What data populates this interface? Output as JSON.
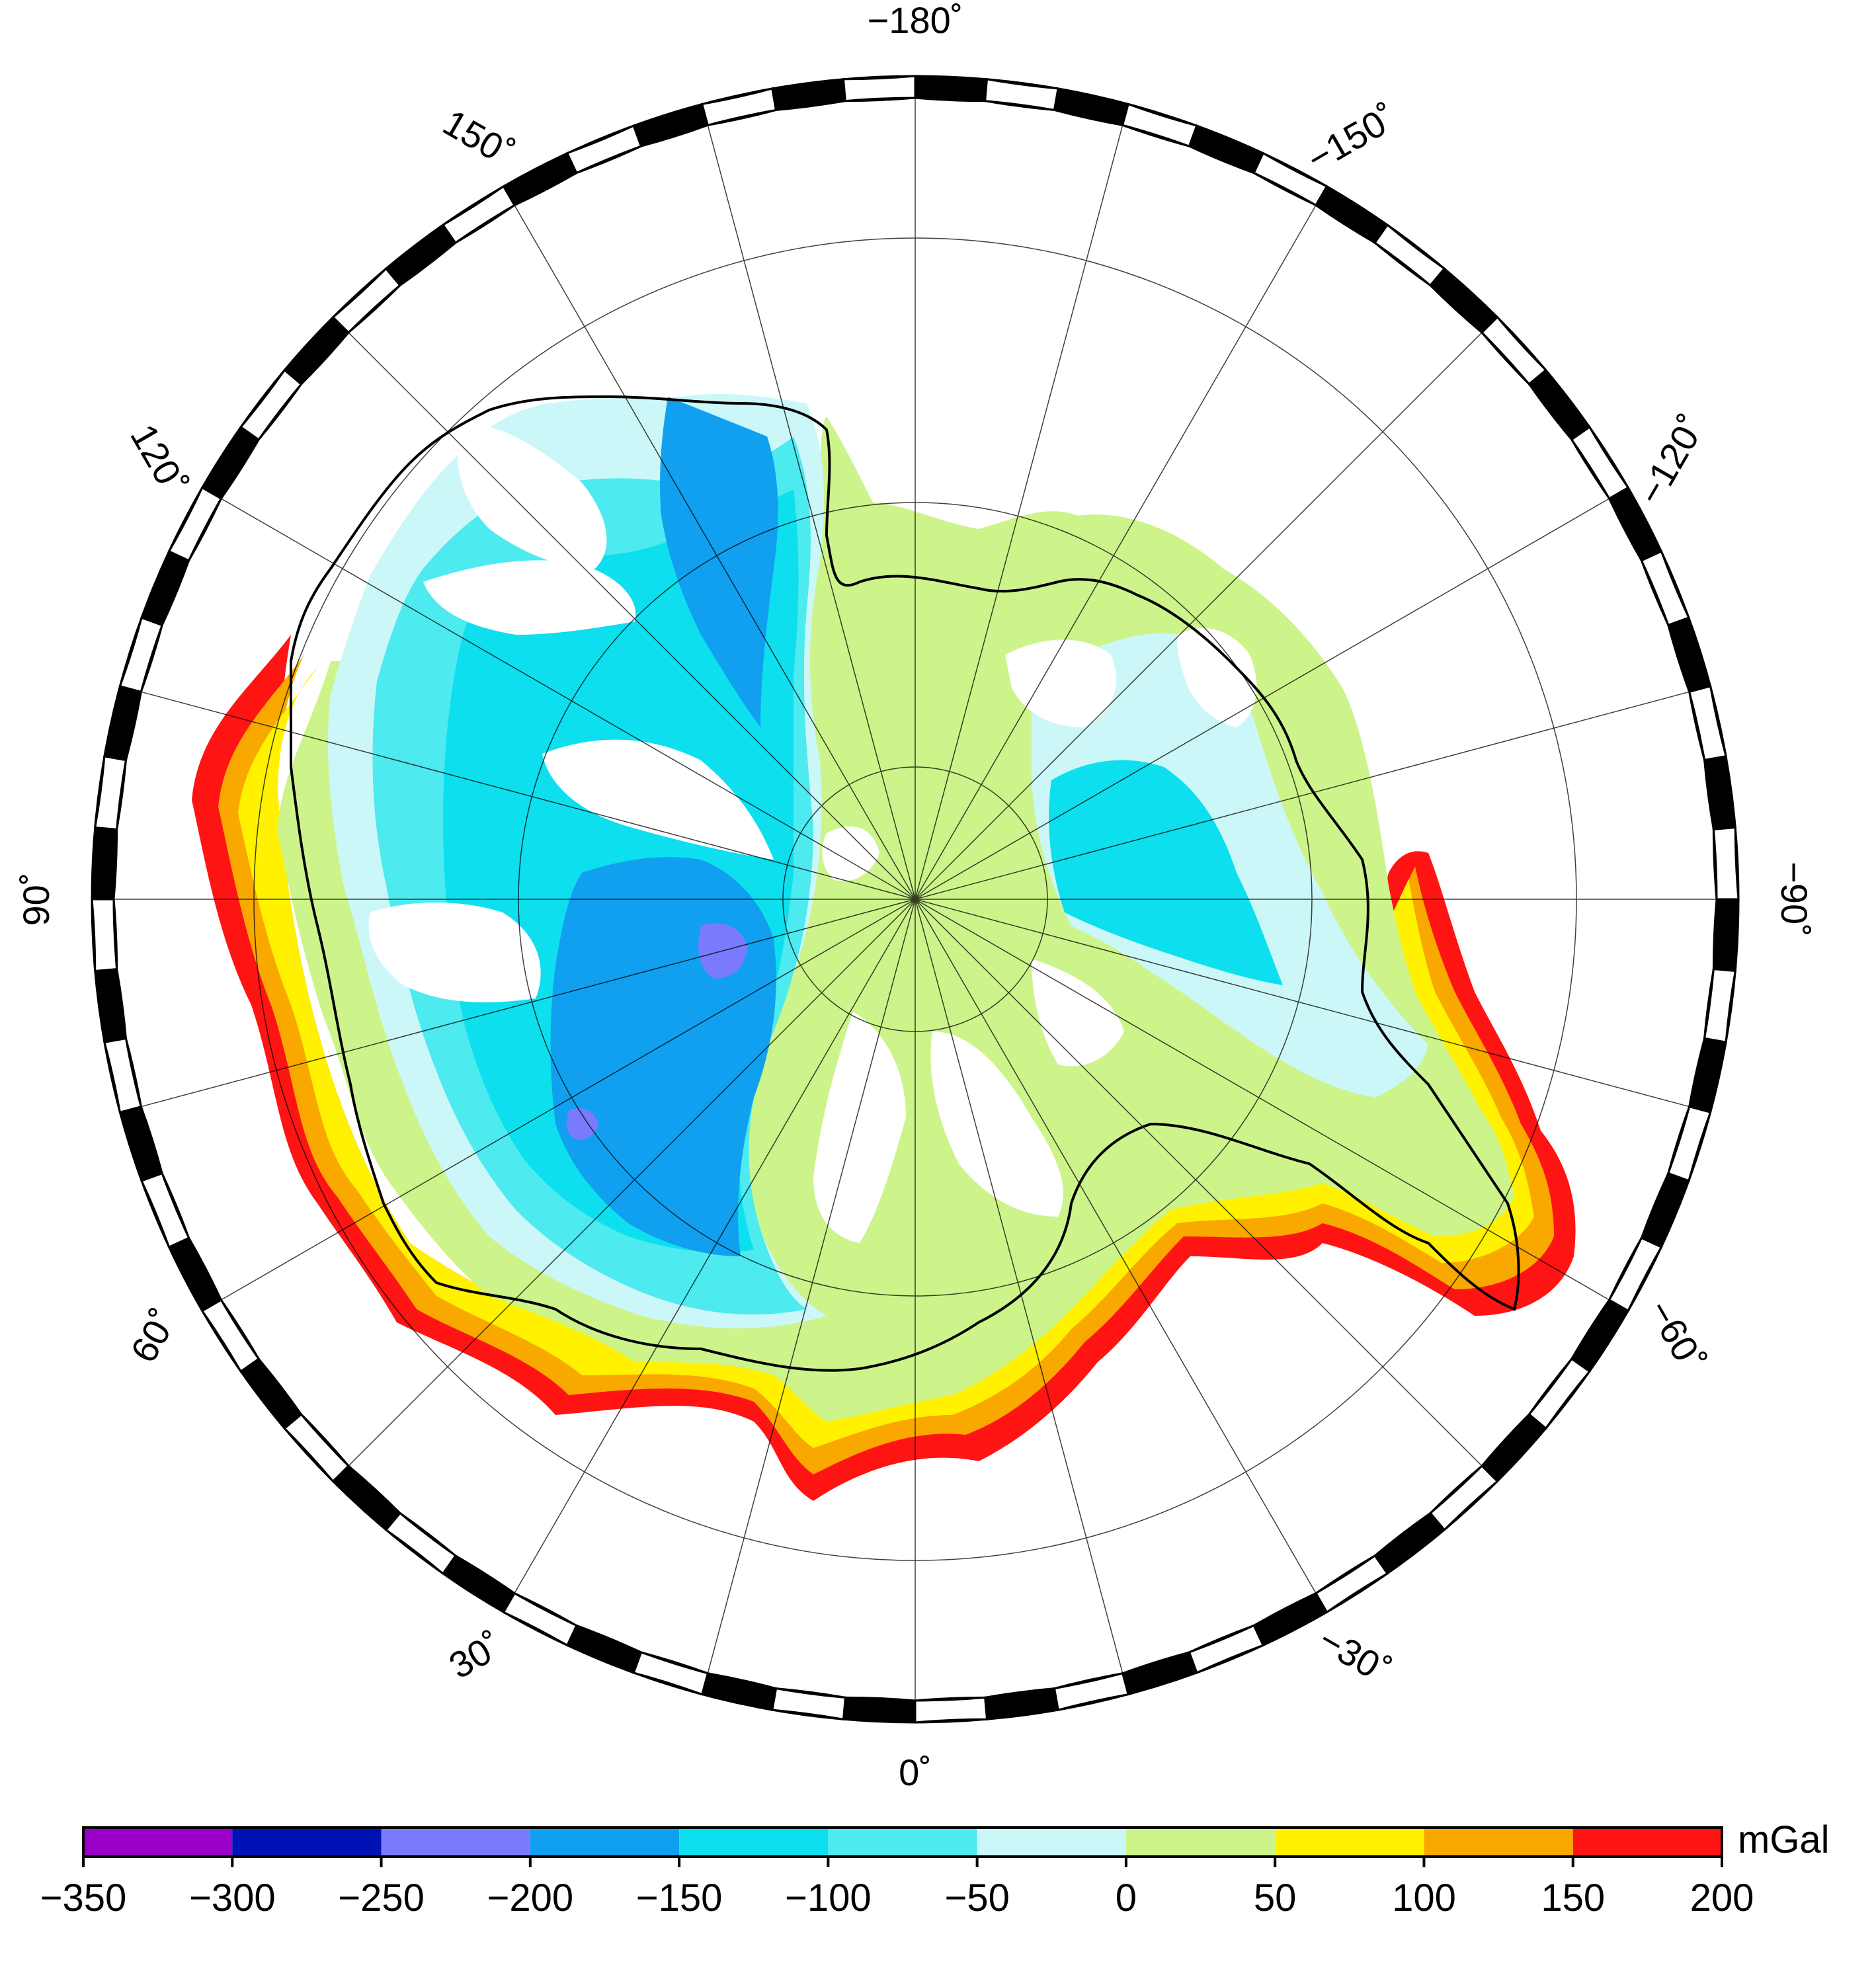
{
  "map": {
    "projection": "polar stereographic (south pole)",
    "graticule_longitudes_deg": [
      -180,
      -165,
      -150,
      -135,
      -120,
      -105,
      -90,
      -75,
      -60,
      -45,
      -30,
      -15,
      0,
      15,
      30,
      45,
      60,
      75,
      90,
      105,
      120,
      135,
      150,
      165
    ],
    "graticule_latitude_rings": 3,
    "frame_style": "alternating black/white ticks",
    "coastline_color": "#000000",
    "longitude_labels": [
      {
        "lon": -180,
        "text": "−180˚"
      },
      {
        "lon": -150,
        "text": "−150˚"
      },
      {
        "lon": -120,
        "text": "−120˚"
      },
      {
        "lon": -90,
        "text": "−90˚"
      },
      {
        "lon": -60,
        "text": "−60˚"
      },
      {
        "lon": -30,
        "text": "−30˚"
      },
      {
        "lon": 0,
        "text": "0˚"
      },
      {
        "lon": 30,
        "text": "30˚"
      },
      {
        "lon": 60,
        "text": "60˚"
      },
      {
        "lon": 90,
        "text": "90˚"
      },
      {
        "lon": 120,
        "text": "120˚"
      },
      {
        "lon": 150,
        "text": "150˚"
      }
    ],
    "field_legend": "anomaly field colored by value bins; no-data regions left blank (white)"
  },
  "colorbar": {
    "unit": "mGal",
    "ticks": [
      "−350",
      "−300",
      "−250",
      "−200",
      "−150",
      "−100",
      "−50",
      "0",
      "50",
      "100",
      "150",
      "200"
    ],
    "bins": [
      {
        "from": -350,
        "to": -300,
        "color": "#9b00c8"
      },
      {
        "from": -300,
        "to": -250,
        "color": "#0012b4"
      },
      {
        "from": -250,
        "to": -200,
        "color": "#7a7aff"
      },
      {
        "from": -200,
        "to": -150,
        "color": "#10a0ef"
      },
      {
        "from": -150,
        "to": -100,
        "color": "#0ddfef"
      },
      {
        "from": -100,
        "to": -50,
        "color": "#4deaf0"
      },
      {
        "from": -50,
        "to": 0,
        "color": "#ccf7f8"
      },
      {
        "from": 0,
        "to": 50,
        "color": "#cdf48b"
      },
      {
        "from": 50,
        "to": 100,
        "color": "#fff100"
      },
      {
        "from": 100,
        "to": 150,
        "color": "#f9a800"
      },
      {
        "from": 150,
        "to": 200,
        "color": "#ff1414"
      }
    ]
  }
}
